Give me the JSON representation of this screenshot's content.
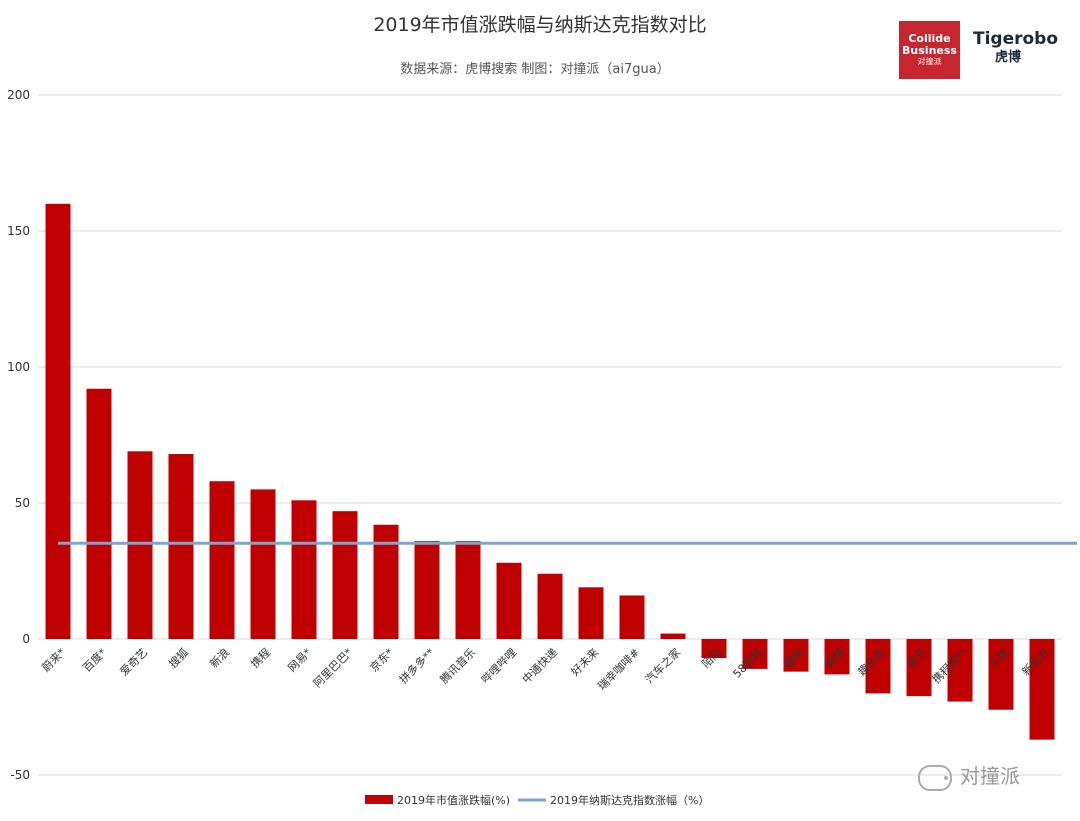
{
  "chart_data": {
    "type": "bar",
    "title": "2019年市值涨跌幅与纳斯达克指数对比",
    "subtitle": "数据来源：虎博搜索  制图：对撞派（ai7gua）",
    "categories": [
      "蔚来*",
      "百度*",
      "爱奇艺",
      "搜狐",
      "新浪",
      "携程",
      "网易*",
      "阿里巴巴*",
      "京东*",
      "拼多多**",
      "腾讯音乐",
      "哔哩哔哩",
      "中通快递",
      "好未来",
      "瑞幸咖啡#",
      "汽车之家",
      "陌陌",
      "58同城",
      "搜狗",
      "微博",
      "趣头条",
      "虎牙",
      "携程网**",
      "斗鱼",
      "新东方"
    ],
    "ylim": [
      -50,
      200
    ],
    "yticks": [
      -50,
      0,
      50,
      100,
      150,
      200
    ],
    "grid": true,
    "legend_position": "bottom",
    "series": [
      {
        "name": "2019年市值涨跌幅(%)",
        "kind": "bar",
        "color": "#c00000",
        "values": [
          160,
          92,
          69,
          68,
          58,
          55,
          51,
          47,
          42,
          36,
          36,
          28,
          24,
          19,
          16,
          2,
          -7,
          -11,
          -12,
          -13,
          -20,
          -21,
          -23,
          -26,
          -37
        ]
      },
      {
        "name": "2019年纳斯达克指数涨幅（%）",
        "kind": "line",
        "color": "#7aa6cf",
        "value": 35.2
      }
    ]
  },
  "logos": {
    "collide_line1": "Collide",
    "collide_line2": "Business",
    "collide_line3": "对撞派",
    "tigerobo_line1": "Tigerobo",
    "tigerobo_line2": "虎博"
  },
  "watermark": {
    "icon": "wechat-icon",
    "text": "对撞派"
  }
}
